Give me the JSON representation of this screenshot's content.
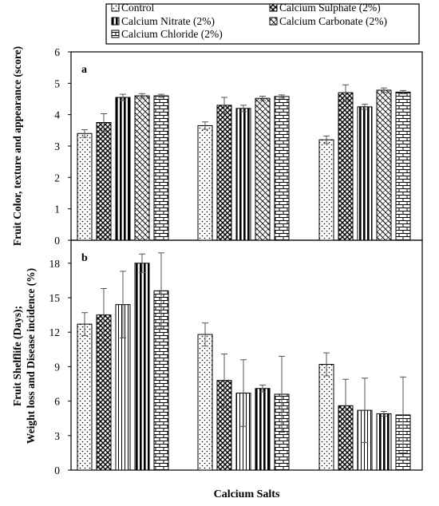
{
  "legend": {
    "items": [
      {
        "label": "Control",
        "pattern": "dots"
      },
      {
        "label": "Calcium Sulphate (2%)",
        "pattern": "cross"
      },
      {
        "label": "Calcium Nitrate (2%)",
        "pattern": "vstripes_bold"
      },
      {
        "label": "Calcium Carbonate (2%)",
        "pattern": "diag"
      },
      {
        "label": "Calcium Chloride (2%)",
        "pattern": "bricks"
      }
    ]
  },
  "xlabel": "Calcium Salts",
  "colors": {
    "ink": "#000000",
    "background": "#ffffff"
  },
  "chart_data": [
    {
      "type": "bar",
      "panel_label": "a",
      "ylabel": "Fruit Color, texture and appearance (score)",
      "ylim": [
        0,
        6
      ],
      "yticks": [
        0,
        1,
        2,
        3,
        4,
        5,
        6
      ],
      "groups": 3,
      "series": [
        {
          "name": "Control",
          "values": [
            3.4,
            3.65,
            3.2
          ],
          "errors": [
            0.12,
            0.12,
            0.12
          ]
        },
        {
          "name": "Calcium Sulphate (2%)",
          "values": [
            3.75,
            4.3,
            4.7
          ],
          "errors": [
            0.28,
            0.25,
            0.25
          ]
        },
        {
          "name": "Calcium Nitrate (2%)",
          "values": [
            4.55,
            4.2,
            4.25
          ],
          "errors": [
            0.1,
            0.1,
            0.08
          ]
        },
        {
          "name": "Calcium Carbonate (2%)",
          "values": [
            4.6,
            4.52,
            4.78
          ],
          "errors": [
            0.07,
            0.07,
            0.07
          ]
        },
        {
          "name": "Calcium Chloride (2%)",
          "values": [
            4.6,
            4.58,
            4.72
          ],
          "errors": [
            0.05,
            0.05,
            0.05
          ]
        }
      ]
    },
    {
      "type": "bar",
      "panel_label": "b",
      "ylabel": "Fruit Shelflife (Days); Weight loss and Disease incidence (%)",
      "ylim": [
        0,
        20
      ],
      "yticks": [
        0,
        3,
        6,
        9,
        12,
        15,
        18
      ],
      "groups": 3,
      "series": [
        {
          "name": "Control",
          "values": [
            12.7,
            11.8,
            9.2
          ],
          "errors": [
            1.0,
            1.0,
            1.0
          ]
        },
        {
          "name": "Calcium Sulphate (2%)",
          "values": [
            13.5,
            7.8,
            5.6
          ],
          "errors": [
            2.3,
            2.3,
            2.3
          ]
        },
        {
          "name": "Calcium Nitrate (2%)",
          "values": [
            14.4,
            6.7,
            5.2
          ],
          "errors": [
            2.9,
            2.9,
            2.8
          ]
        },
        {
          "name": "Calcium Carbonate (2%)",
          "values": [
            18.0,
            7.1,
            4.9
          ],
          "errors": [
            0.8,
            0.3,
            0.2
          ]
        },
        {
          "name": "Calcium Chloride (2%)",
          "values": [
            15.6,
            6.6,
            4.8
          ],
          "errors": [
            3.3,
            3.3,
            3.3
          ]
        }
      ]
    }
  ]
}
